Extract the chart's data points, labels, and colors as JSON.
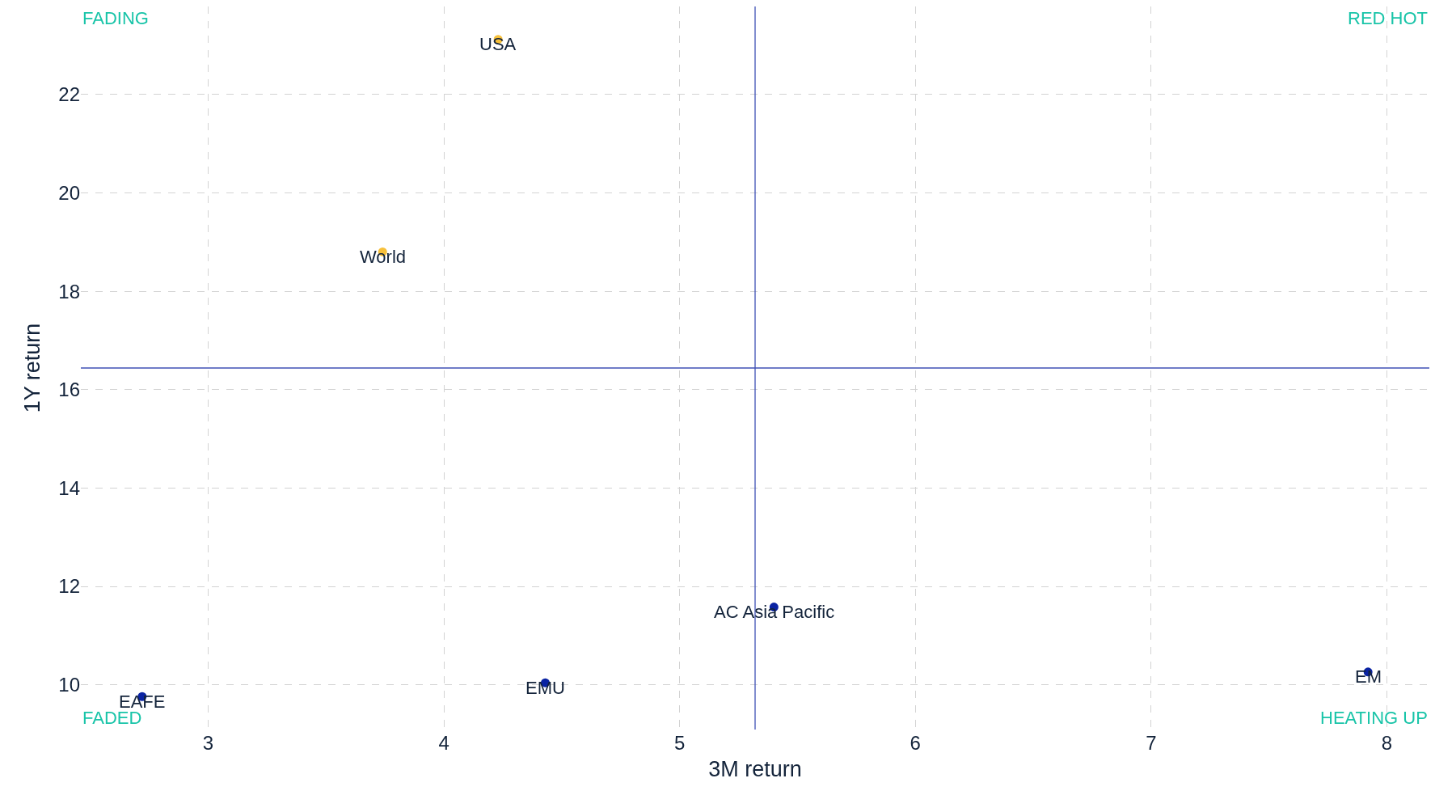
{
  "chart_data": {
    "type": "scatter",
    "xlabel": "3M return",
    "ylabel": "1Y return",
    "series": [
      {
        "color": "#f7c03a",
        "x": [
          4.23,
          3.74
        ],
        "values": [
          23.12,
          18.8
        ]
      },
      {
        "color": "#0a23a3",
        "x": [
          2.72,
          4.43,
          5.4,
          7.92
        ],
        "values": [
          9.76,
          10.04,
          11.58,
          10.26
        ]
      }
    ],
    "annotations": [
      {
        "text": "USA",
        "x": 4.23,
        "y": 23.12
      },
      {
        "text": "World",
        "x": 3.74,
        "y": 18.8
      },
      {
        "text": "EAFE",
        "x": 2.72,
        "y": 9.76
      },
      {
        "text": "EMU",
        "x": 4.43,
        "y": 10.04
      },
      {
        "text": "AC Asia Pacific",
        "x": 5.4,
        "y": 11.58
      },
      {
        "text": "EM",
        "x": 7.92,
        "y": 10.26
      },
      "FADING",
      "RED HOT",
      "FADED",
      "HEATING UP"
    ],
    "ref_lines": [
      {
        "axis": "x",
        "value": 5.32,
        "color": "#3f51b5"
      },
      {
        "axis": "y",
        "value": 16.44,
        "color": "#3f51b5"
      }
    ],
    "xlim": [
      2.46,
      8.18
    ],
    "ylim": [
      9.09,
      23.79
    ],
    "xticks": [
      3,
      4,
      5,
      6,
      7,
      8
    ],
    "yticks": [
      10,
      12,
      14,
      16,
      18,
      20,
      22
    ],
    "grid": true,
    "marker": "circle"
  }
}
